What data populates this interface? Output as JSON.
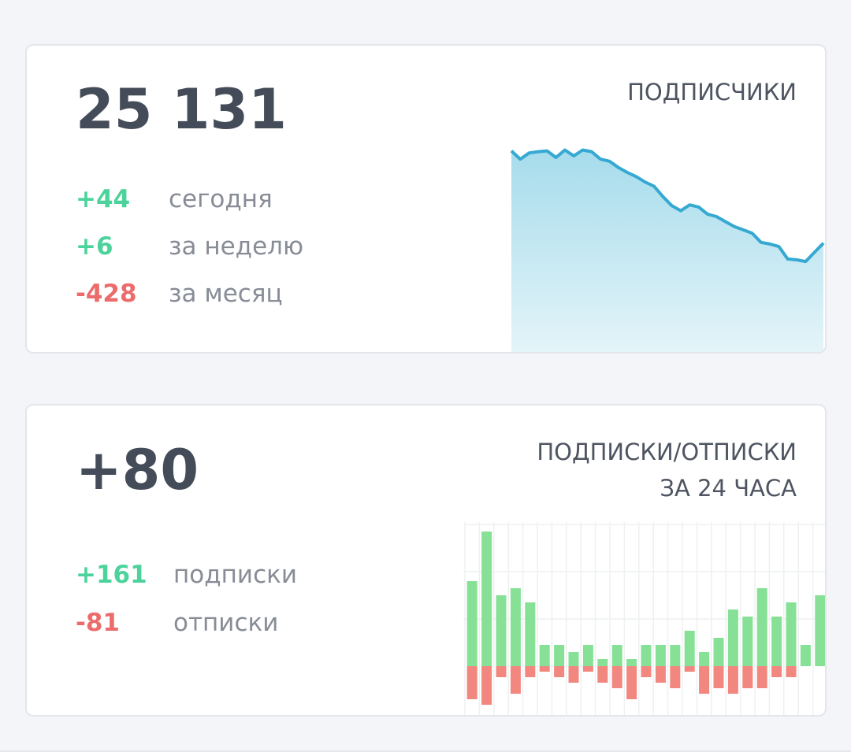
{
  "subscribers_card": {
    "total": "25 131",
    "title": "ПОДПИСЧИКИ",
    "stats": [
      {
        "value": "+44",
        "label": "сегодня",
        "color": "#4cd39b"
      },
      {
        "value": "+6",
        "label": "за неделю",
        "color": "#4cd39b"
      },
      {
        "value": "-428",
        "label": "за месяц",
        "color": "#ec6b6b"
      }
    ]
  },
  "daily_card": {
    "total": "+80",
    "title_line1": "ПОДПИСКИ/ОТПИСКИ",
    "title_line2": "ЗА 24 ЧАСА",
    "stats": [
      {
        "value": "+161",
        "label": "подписки",
        "color": "#4cd39b"
      },
      {
        "value": "-81",
        "label": "отписки",
        "color": "#ec6b6b"
      }
    ]
  },
  "colors": {
    "positive": "#4cd39b",
    "negative": "#ec6b6b",
    "line": "#35a9d2",
    "bar_positive": "#86e196",
    "bar_negative": "#f2877f"
  },
  "chart_data": [
    {
      "type": "area",
      "series": [
        {
          "values": [
            25420,
            25400,
            25415,
            25418,
            25420,
            25404,
            25422,
            25408,
            25422,
            25418,
            25400,
            25395,
            25380,
            25368,
            25358,
            25345,
            25335,
            25310,
            25288,
            25276,
            25290,
            25285,
            25268,
            25262,
            25250,
            25238,
            25230,
            25222,
            25200,
            25196,
            25190,
            25160,
            25158,
            25154,
            25176,
            25198
          ]
        }
      ]
    },
    {
      "type": "bar",
      "series": [
        {
          "values": [
            12,
            19,
            10,
            11,
            9,
            3,
            3,
            2,
            3,
            1,
            3,
            1,
            3,
            3,
            3,
            5,
            2,
            4,
            8,
            7,
            11,
            7,
            9,
            3,
            10
          ]
        },
        {
          "values": [
            -6,
            -7,
            -2,
            -5,
            -2,
            -1,
            -2,
            -3,
            -1,
            -3,
            -4,
            -6,
            -2,
            -3,
            -4,
            -1,
            -5,
            -4,
            -5,
            -4,
            -4,
            -2,
            -2
          ]
        }
      ]
    }
  ]
}
